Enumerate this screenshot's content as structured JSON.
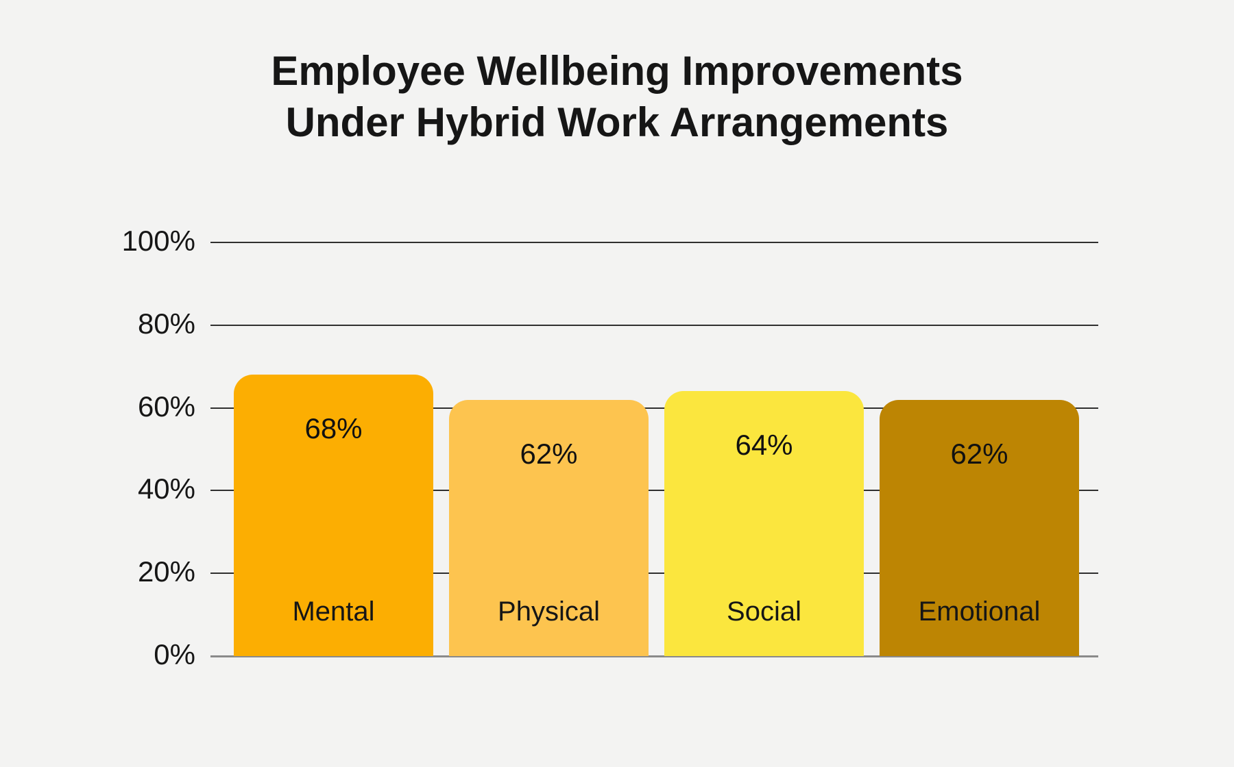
{
  "page": {
    "background_color": "#F3F3F2",
    "text_color": "#161616"
  },
  "chart_data": {
    "type": "bar",
    "title": "Employee Wellbeing Improvements Under Hybrid Work Arrangements",
    "title_lines": [
      "Employee Wellbeing Improvements",
      "Under Hybrid Work Arrangements"
    ],
    "categories": [
      "Mental",
      "Physical",
      "Social",
      "Emotional"
    ],
    "values": [
      68,
      62,
      64,
      62
    ],
    "bar_labels": [
      "68%",
      "62%",
      "64%",
      "62%"
    ],
    "bar_colors": [
      "#FCAE02",
      "#FDC44F",
      "#FBE63E",
      "#BD8503"
    ],
    "xlabel": "",
    "ylabel": "",
    "y_axis": {
      "min": 0,
      "max": 100,
      "ticks": [
        0,
        20,
        40,
        60,
        80,
        100
      ],
      "tick_labels": [
        "0%",
        "20%",
        "40%",
        "60%",
        "80%",
        "100%"
      ]
    },
    "grid": true,
    "legend": false,
    "gridline_color": "#2F2F2F",
    "baseline_color": "#8A8A8A",
    "value_label_color": "#111111"
  }
}
